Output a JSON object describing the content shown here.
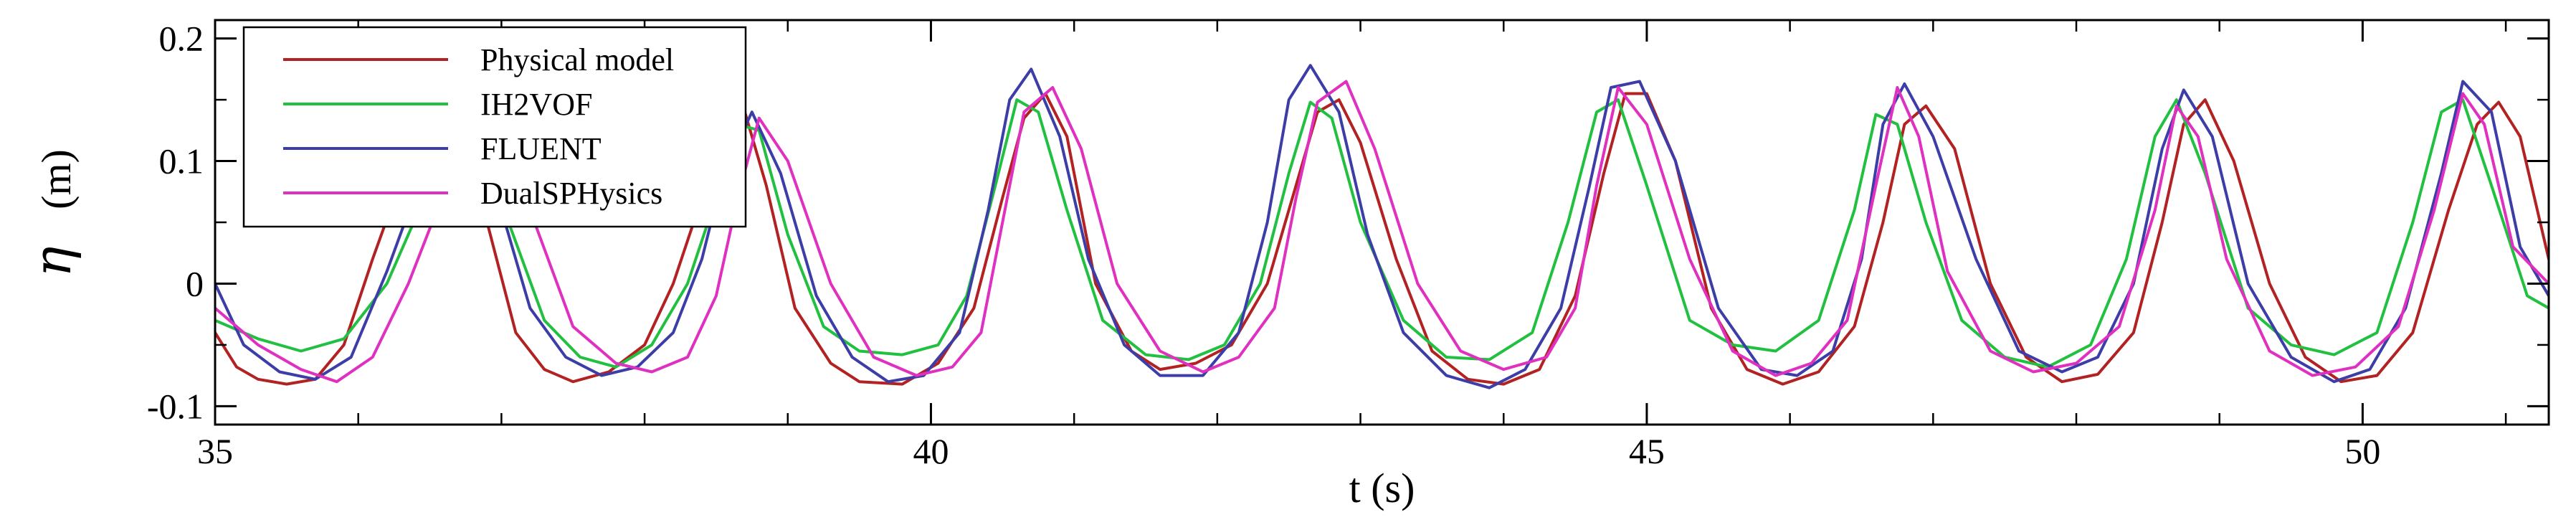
{
  "chart_data": {
    "type": "line",
    "xlabel": "t (s)",
    "ylabel_symbol": "η",
    "ylabel_unit": "(m)",
    "xlim": [
      35,
      51.3
    ],
    "ylim": [
      -0.115,
      0.215
    ],
    "xticks": [
      35,
      40,
      45,
      50
    ],
    "xtick_labels": [
      "35",
      "40",
      "45",
      "50"
    ],
    "yticks": [
      -0.1,
      0,
      0.1,
      0.2
    ],
    "ytick_labels": [
      "-0.1",
      "0",
      "0.1",
      "0.2"
    ],
    "x_minor_step": 1,
    "y_minor_step": 0.05,
    "grid": false,
    "legend_position": "top-left",
    "series": [
      {
        "name": "Physical model",
        "color": "#b22222",
        "x": [
          35.0,
          35.15,
          35.3,
          35.5,
          35.7,
          35.9,
          36.1,
          36.3,
          36.6,
          36.9,
          37.1,
          37.3,
          37.5,
          37.75,
          38.0,
          38.2,
          38.4,
          38.55,
          38.7,
          38.85,
          39.05,
          39.3,
          39.5,
          39.8,
          40.05,
          40.3,
          40.5,
          40.65,
          40.8,
          40.95,
          41.15,
          41.4,
          41.6,
          41.85,
          42.1,
          42.35,
          42.55,
          42.7,
          42.85,
          43.0,
          43.25,
          43.5,
          43.75,
          44.0,
          44.25,
          44.5,
          44.7,
          44.85,
          45.0,
          45.2,
          45.45,
          45.7,
          45.95,
          46.2,
          46.45,
          46.65,
          46.8,
          46.95,
          47.15,
          47.4,
          47.65,
          47.9,
          48.15,
          48.4,
          48.6,
          48.75,
          48.9,
          49.1,
          49.35,
          49.6,
          49.85,
          50.1,
          50.35,
          50.6,
          50.8,
          50.95,
          51.1,
          51.3
        ],
        "y": [
          -0.04,
          -0.068,
          -0.078,
          -0.082,
          -0.078,
          -0.05,
          0.02,
          0.085,
          0.13,
          0.05,
          -0.04,
          -0.07,
          -0.08,
          -0.072,
          -0.05,
          0.0,
          0.07,
          0.125,
          0.14,
          0.08,
          -0.02,
          -0.065,
          -0.08,
          -0.082,
          -0.065,
          -0.02,
          0.07,
          0.135,
          0.155,
          0.12,
          0.0,
          -0.055,
          -0.07,
          -0.065,
          -0.05,
          0.0,
          0.08,
          0.14,
          0.15,
          0.115,
          0.02,
          -0.055,
          -0.078,
          -0.082,
          -0.07,
          -0.01,
          0.09,
          0.155,
          0.155,
          0.1,
          -0.02,
          -0.07,
          -0.082,
          -0.072,
          -0.035,
          0.05,
          0.13,
          0.145,
          0.11,
          0.0,
          -0.06,
          -0.08,
          -0.074,
          -0.04,
          0.05,
          0.13,
          0.15,
          0.1,
          0.0,
          -0.06,
          -0.08,
          -0.075,
          -0.04,
          0.06,
          0.13,
          0.148,
          0.12,
          0.02
        ]
      },
      {
        "name": "IH2VOF",
        "color": "#22c040",
        "x": [
          35.0,
          35.3,
          35.6,
          35.9,
          36.2,
          36.5,
          36.8,
          37.05,
          37.3,
          37.55,
          37.8,
          38.05,
          38.3,
          38.5,
          38.65,
          38.8,
          39.0,
          39.25,
          39.5,
          39.8,
          40.05,
          40.25,
          40.45,
          40.6,
          40.75,
          40.95,
          41.2,
          41.5,
          41.8,
          42.05,
          42.3,
          42.5,
          42.65,
          42.8,
          43.0,
          43.3,
          43.6,
          43.9,
          44.2,
          44.45,
          44.65,
          44.8,
          45.0,
          45.3,
          45.6,
          45.9,
          46.2,
          46.45,
          46.6,
          46.75,
          46.95,
          47.2,
          47.5,
          47.8,
          48.1,
          48.35,
          48.55,
          48.7,
          48.9,
          49.2,
          49.5,
          49.8,
          50.1,
          50.35,
          50.55,
          50.7,
          50.9,
          51.15,
          51.3
        ],
        "y": [
          -0.03,
          -0.045,
          -0.055,
          -0.045,
          0.0,
          0.08,
          0.13,
          0.05,
          -0.03,
          -0.06,
          -0.068,
          -0.05,
          0.0,
          0.07,
          0.13,
          0.125,
          0.04,
          -0.035,
          -0.055,
          -0.058,
          -0.05,
          -0.01,
          0.08,
          0.15,
          0.14,
          0.06,
          -0.03,
          -0.058,
          -0.062,
          -0.05,
          0.0,
          0.09,
          0.148,
          0.135,
          0.05,
          -0.03,
          -0.06,
          -0.062,
          -0.04,
          0.05,
          0.14,
          0.15,
          0.08,
          -0.03,
          -0.05,
          -0.055,
          -0.03,
          0.06,
          0.138,
          0.13,
          0.05,
          -0.03,
          -0.06,
          -0.068,
          -0.05,
          0.02,
          0.12,
          0.15,
          0.09,
          -0.02,
          -0.05,
          -0.058,
          -0.04,
          0.05,
          0.14,
          0.15,
          0.08,
          -0.01,
          -0.02
        ]
      },
      {
        "name": "FLUENT",
        "color": "#3d3da8",
        "x": [
          35.0,
          35.2,
          35.45,
          35.7,
          35.95,
          36.2,
          36.45,
          36.7,
          36.95,
          37.2,
          37.45,
          37.7,
          37.95,
          38.2,
          38.4,
          38.55,
          38.75,
          38.95,
          39.2,
          39.45,
          39.7,
          39.95,
          40.2,
          40.4,
          40.55,
          40.7,
          40.9,
          41.1,
          41.35,
          41.6,
          41.9,
          42.15,
          42.35,
          42.5,
          42.65,
          42.85,
          43.05,
          43.3,
          43.6,
          43.9,
          44.15,
          44.4,
          44.6,
          44.75,
          44.95,
          45.2,
          45.5,
          45.8,
          46.05,
          46.3,
          46.5,
          46.65,
          46.8,
          47.0,
          47.3,
          47.6,
          47.9,
          48.15,
          48.4,
          48.6,
          48.75,
          48.95,
          49.2,
          49.5,
          49.8,
          50.05,
          50.3,
          50.55,
          50.7,
          50.9,
          51.1,
          51.3
        ],
        "y": [
          0.0,
          -0.05,
          -0.072,
          -0.078,
          -0.06,
          0.01,
          0.09,
          0.13,
          0.08,
          -0.02,
          -0.06,
          -0.075,
          -0.068,
          -0.04,
          0.02,
          0.09,
          0.14,
          0.09,
          -0.01,
          -0.06,
          -0.08,
          -0.075,
          -0.04,
          0.06,
          0.15,
          0.175,
          0.12,
          0.02,
          -0.05,
          -0.075,
          -0.075,
          -0.04,
          0.05,
          0.15,
          0.178,
          0.14,
          0.04,
          -0.04,
          -0.075,
          -0.085,
          -0.07,
          -0.02,
          0.08,
          0.16,
          0.165,
          0.1,
          -0.02,
          -0.07,
          -0.075,
          -0.055,
          0.02,
          0.13,
          0.163,
          0.12,
          0.02,
          -0.055,
          -0.072,
          -0.06,
          0.0,
          0.11,
          0.158,
          0.12,
          0.0,
          -0.06,
          -0.08,
          -0.07,
          -0.02,
          0.09,
          0.165,
          0.14,
          0.03,
          -0.01
        ]
      },
      {
        "name": "DualSPHysics",
        "color": "#e030c0",
        "x": [
          35.0,
          35.3,
          35.6,
          35.85,
          36.1,
          36.35,
          36.65,
          36.95,
          37.2,
          37.5,
          37.8,
          38.05,
          38.3,
          38.5,
          38.65,
          38.8,
          39.0,
          39.3,
          39.6,
          39.9,
          40.15,
          40.35,
          40.5,
          40.65,
          40.85,
          41.05,
          41.3,
          41.6,
          41.9,
          42.15,
          42.4,
          42.55,
          42.7,
          42.9,
          43.1,
          43.4,
          43.7,
          44.0,
          44.3,
          44.5,
          44.65,
          44.8,
          45.0,
          45.3,
          45.6,
          45.9,
          46.15,
          46.4,
          46.6,
          46.75,
          46.9,
          47.1,
          47.4,
          47.7,
          48.0,
          48.3,
          48.55,
          48.7,
          48.85,
          49.05,
          49.35,
          49.65,
          49.95,
          50.25,
          50.5,
          50.7,
          50.85,
          51.05,
          51.3
        ],
        "y": [
          -0.02,
          -0.05,
          -0.07,
          -0.08,
          -0.06,
          0.0,
          0.09,
          0.13,
          0.06,
          -0.035,
          -0.065,
          -0.072,
          -0.06,
          -0.01,
          0.07,
          0.135,
          0.1,
          0.0,
          -0.06,
          -0.075,
          -0.068,
          -0.04,
          0.05,
          0.14,
          0.16,
          0.11,
          0.0,
          -0.055,
          -0.072,
          -0.06,
          -0.02,
          0.07,
          0.148,
          0.165,
          0.11,
          0.0,
          -0.055,
          -0.07,
          -0.06,
          -0.02,
          0.08,
          0.16,
          0.13,
          0.02,
          -0.055,
          -0.075,
          -0.065,
          -0.03,
          0.08,
          0.16,
          0.12,
          0.01,
          -0.055,
          -0.072,
          -0.065,
          -0.035,
          0.06,
          0.145,
          0.12,
          0.02,
          -0.055,
          -0.075,
          -0.068,
          -0.035,
          0.06,
          0.155,
          0.13,
          0.03,
          0.0
        ]
      }
    ]
  }
}
